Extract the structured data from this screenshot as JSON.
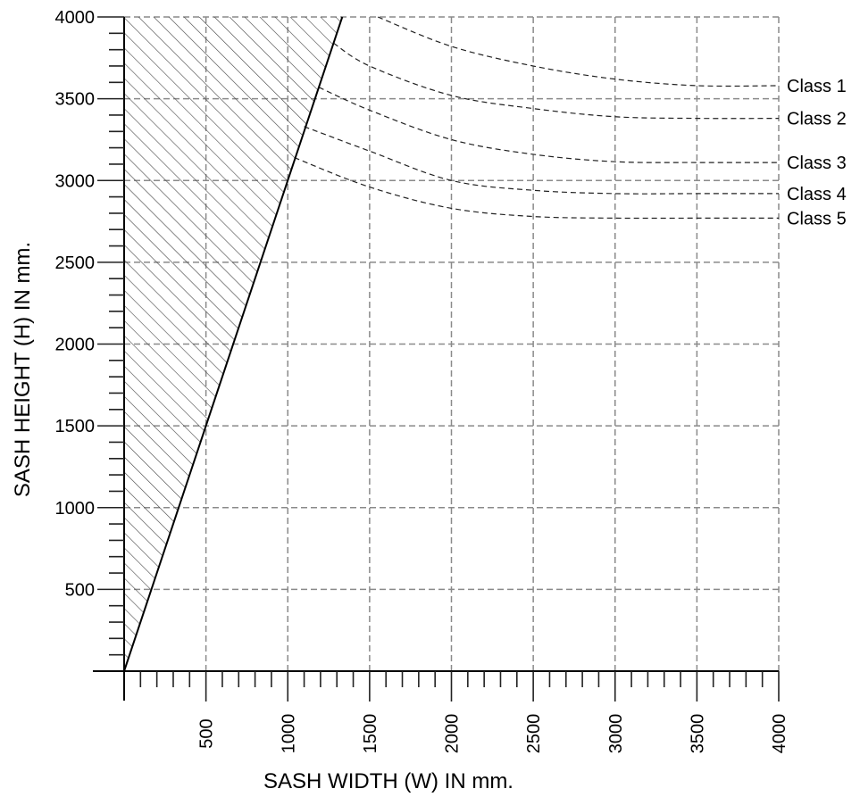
{
  "chart_data": {
    "type": "line",
    "title": "",
    "xlabel": "SASH WIDTH (W) IN mm.",
    "ylabel": "SASH HEIGHT (H) IN mm.",
    "xlim": [
      0,
      4000
    ],
    "ylim": [
      0,
      4000
    ],
    "x_ticks": [
      "500",
      "1000",
      "1500",
      "2000",
      "2500",
      "3000",
      "3500",
      "4000"
    ],
    "y_ticks": [
      "500",
      "1000",
      "1500",
      "2000",
      "2500",
      "3000",
      "3500",
      "4000"
    ],
    "x_tick_values": [
      500,
      1000,
      1500,
      2000,
      2500,
      3000,
      3500,
      4000
    ],
    "y_tick_values": [
      500,
      1000,
      1500,
      2000,
      2500,
      3000,
      3500,
      4000
    ],
    "minor_tick_step": 100,
    "grid": true,
    "hatched_region": "excluded area left of limit line H = 3W",
    "limit_line": {
      "x": [
        0,
        1333
      ],
      "y": [
        0,
        4000
      ]
    },
    "series": [
      {
        "name": "Class 1",
        "x": [
          1550,
          2000,
          2500,
          3000,
          3500,
          4000
        ],
        "y": [
          4000,
          3820,
          3700,
          3620,
          3580,
          3580
        ]
      },
      {
        "name": "Class 2",
        "x": [
          1280,
          1500,
          2000,
          2500,
          3000,
          3500,
          4000
        ],
        "y": [
          3840,
          3700,
          3520,
          3440,
          3390,
          3380,
          3380
        ]
      },
      {
        "name": "Class 3",
        "x": [
          1190,
          1500,
          2000,
          2500,
          3000,
          3500,
          4000
        ],
        "y": [
          3570,
          3430,
          3250,
          3160,
          3115,
          3110,
          3110
        ]
      },
      {
        "name": "Class 4",
        "x": [
          1100,
          1500,
          2000,
          2500,
          3000,
          3500,
          4000
        ],
        "y": [
          3330,
          3180,
          3000,
          2940,
          2920,
          2920,
          2920
        ]
      },
      {
        "name": "Class 5",
        "x": [
          1040,
          1500,
          2000,
          2500,
          3000,
          3500,
          4000
        ],
        "y": [
          3140,
          2960,
          2830,
          2780,
          2770,
          2770,
          2770
        ]
      }
    ]
  }
}
